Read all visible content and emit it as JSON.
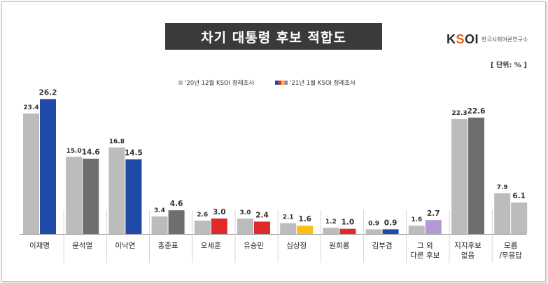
{
  "title": "차기 대통령 후보 적합도",
  "logo": {
    "mark": "KSOI",
    "text": "한국사회여론연구소"
  },
  "unit": "[ 단위: % ]",
  "legend": {
    "prev": "'20년 12월 KSOI 정례조사",
    "curr": "'21년 1월 KSOI 정례조사"
  },
  "colors": {
    "prev": "#bcbcbc",
    "gray_dark": "#6e6e6e",
    "blue": "#1f4aa8",
    "red": "#e02a2a",
    "yellow": "#f5c21a",
    "purple": "#b39ad1"
  },
  "chart_data": {
    "type": "bar",
    "categories": [
      "이재명",
      "윤석열",
      "이낙연",
      "홍준표",
      "오세훈",
      "유승민",
      "심상정",
      "원희룡",
      "김부겸",
      "그 외\n다른 후보",
      "지지후보\n없음",
      "모름\n/무응답"
    ],
    "series": [
      {
        "name": "'20년 12월 KSOI 정례조사",
        "values": [
          23.4,
          15.0,
          16.8,
          3.4,
          2.6,
          3.0,
          2.1,
          1.2,
          0.9,
          1.6,
          22.3,
          7.9
        ]
      },
      {
        "name": "'21년 1월 KSOI 정례조사",
        "values": [
          26.2,
          14.6,
          14.5,
          4.6,
          3.0,
          2.4,
          1.6,
          1.0,
          0.9,
          2.7,
          22.6,
          6.1
        ]
      }
    ],
    "value_labels_prev": [
      "23.4",
      "15.0",
      "16.8",
      "3.4",
      "2.6",
      "3.0",
      "2.1",
      "1.2",
      "0.9",
      "1.6",
      "22.3",
      "7.9"
    ],
    "value_labels_curr": [
      "26.2",
      "14.6",
      "14.5",
      "4.6",
      "3.0",
      "2.4",
      "1.6",
      "1.0",
      "0.9",
      "2.7",
      "22.6",
      "6.1"
    ],
    "curr_colors": [
      "blue",
      "gray_dark",
      "blue",
      "gray_dark",
      "red",
      "red",
      "yellow",
      "red",
      "blue",
      "purple",
      "gray_dark",
      "prev"
    ],
    "curr_label_colors": [
      "blue",
      "gray_dark",
      "blue",
      "gray_dark",
      "red",
      "red",
      "yellow",
      "red",
      "blue",
      "purple",
      "gray_dark",
      "prev"
    ],
    "prev_bar_colors": [
      "prev",
      "prev",
      "prev",
      "prev",
      "prev",
      "prev",
      "prev",
      "prev",
      "prev",
      "prev",
      "prev",
      "prev"
    ],
    "ylim": [
      0,
      30
    ],
    "legend_position": "top-center",
    "grid": false
  }
}
